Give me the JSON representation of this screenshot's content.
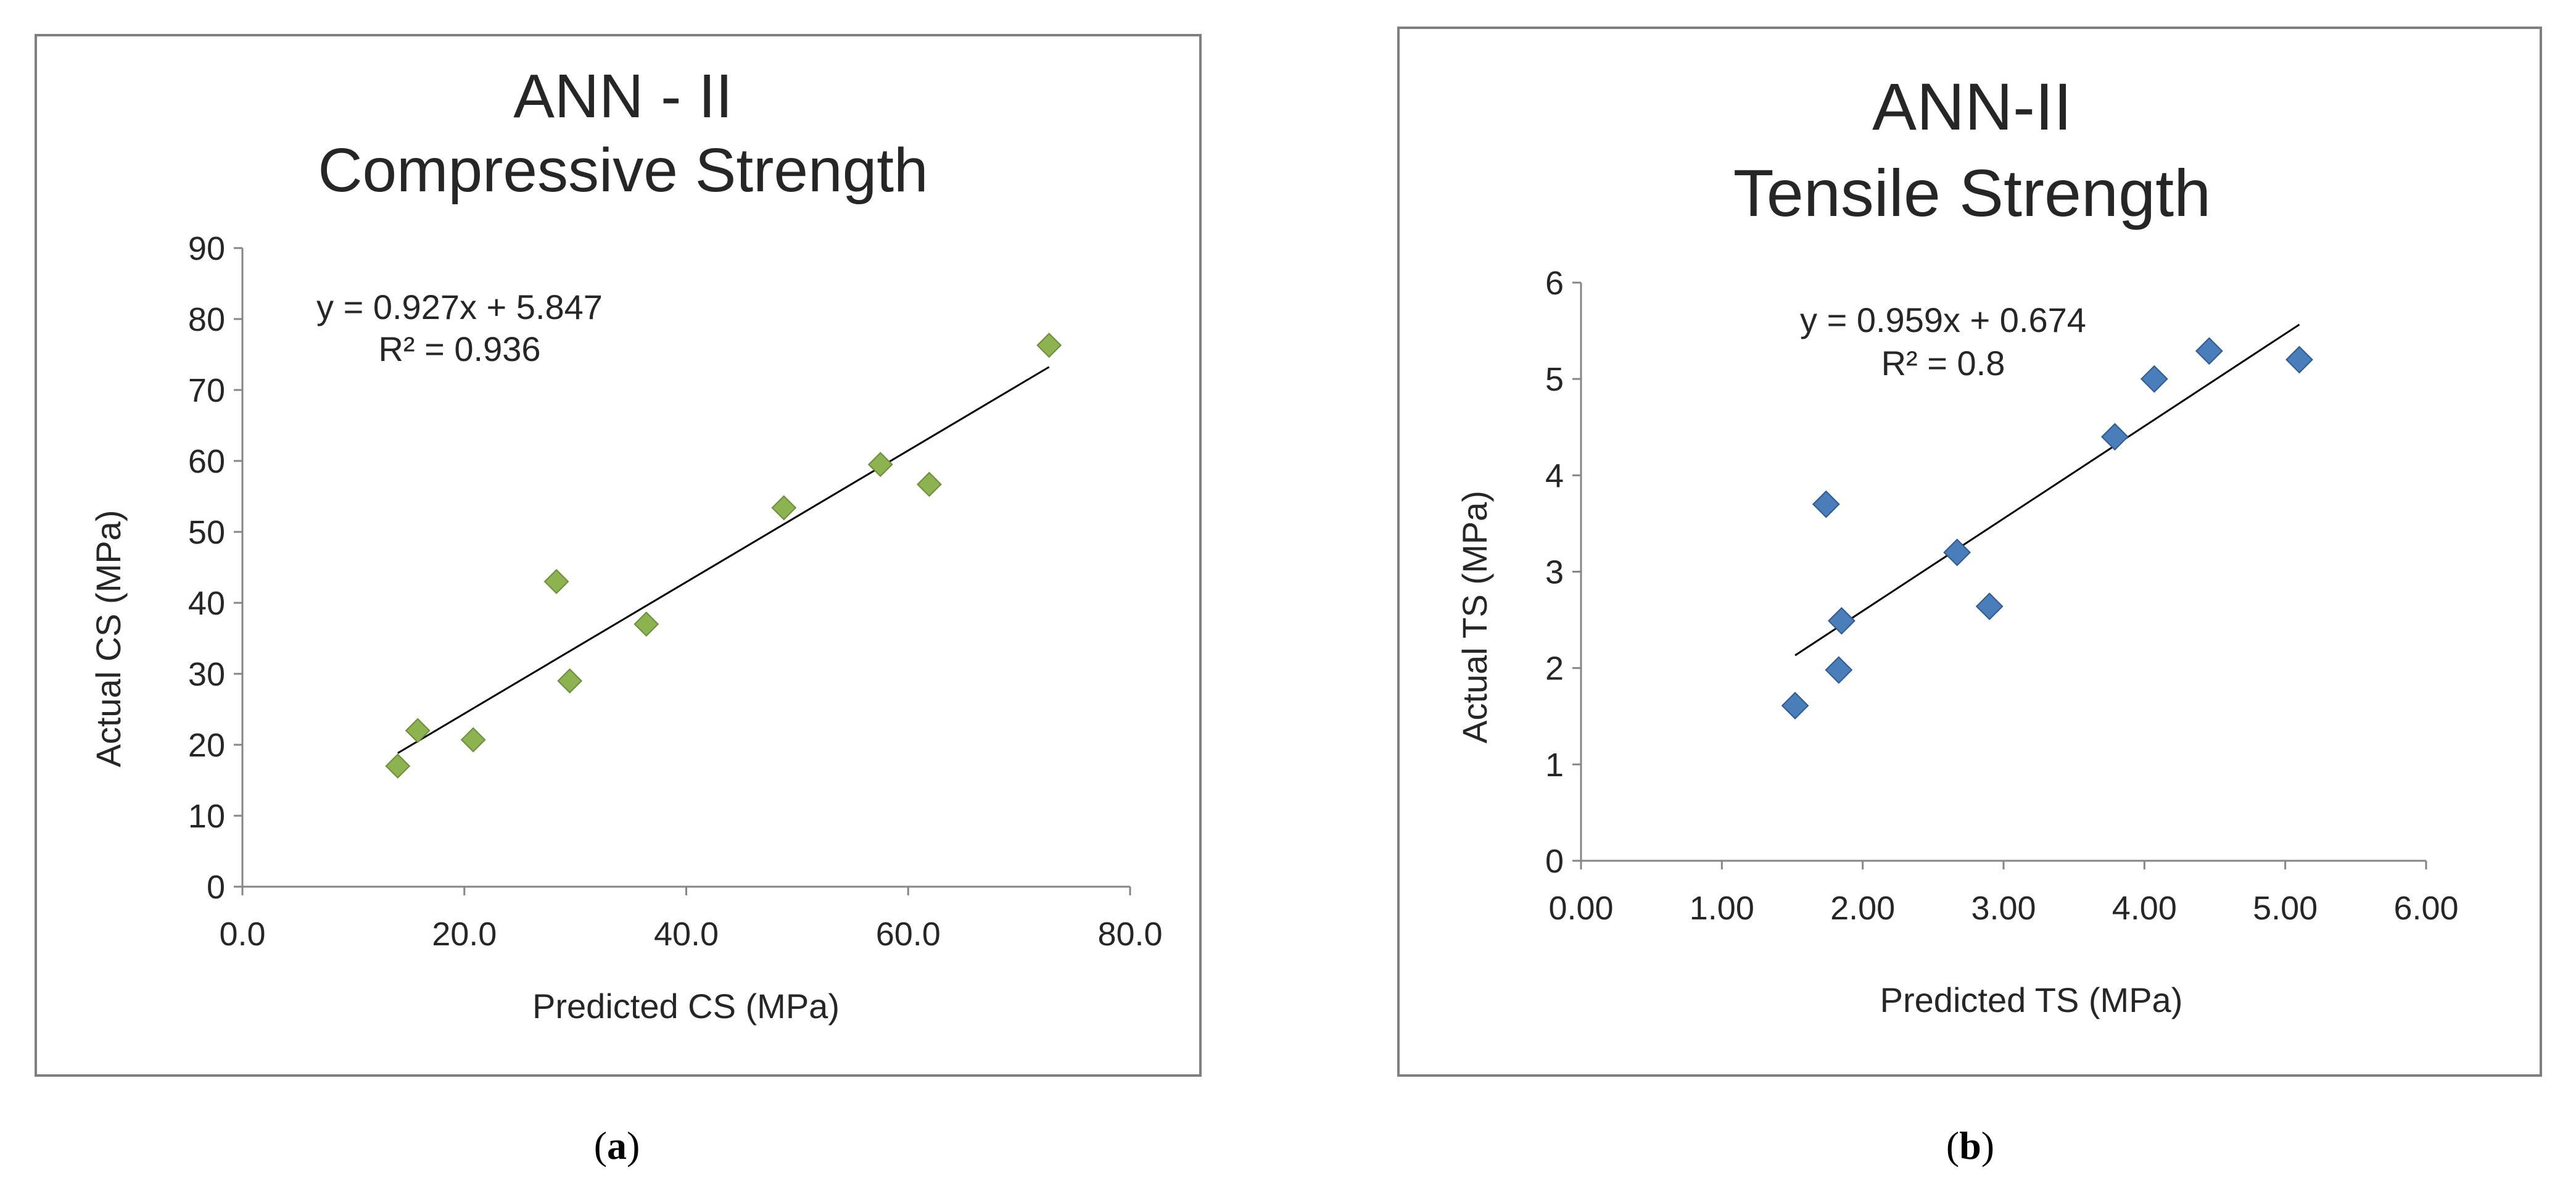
{
  "chart_data": [
    {
      "type": "scatter",
      "title_lines": [
        "ANN - II",
        "Compressive Strength"
      ],
      "xlabel": "Predicted CS (MPa)",
      "ylabel": "Actual CS (MPa)",
      "xlim": [
        0,
        80
      ],
      "ylim": [
        0,
        90
      ],
      "x_ticks": [
        0,
        20,
        40,
        60,
        80
      ],
      "x_tick_labels": [
        "0.0",
        "20.0",
        "40.0",
        "60.0",
        "80.0"
      ],
      "y_ticks": [
        0,
        10,
        20,
        30,
        40,
        50,
        60,
        70,
        80,
        90
      ],
      "y_tick_labels": [
        "0",
        "10",
        "20",
        "30",
        "40",
        "50",
        "60",
        "70",
        "80",
        "90"
      ],
      "grid": false,
      "marker_color": "#8DB350",
      "marker_edge": "#6B8E3A",
      "points": [
        {
          "x": 14.0,
          "y": 17.0
        },
        {
          "x": 15.8,
          "y": 22.0
        },
        {
          "x": 20.8,
          "y": 20.7
        },
        {
          "x": 28.3,
          "y": 43.0
        },
        {
          "x": 29.5,
          "y": 29.0
        },
        {
          "x": 36.4,
          "y": 37.0
        },
        {
          "x": 48.8,
          "y": 53.4
        },
        {
          "x": 57.5,
          "y": 59.5
        },
        {
          "x": 61.9,
          "y": 56.7
        },
        {
          "x": 72.7,
          "y": 76.3
        }
      ],
      "trendline": {
        "slope": 0.927,
        "intercept": 5.847,
        "x_range": [
          14.0,
          72.7
        ]
      },
      "equation_text": "y = 0.927x + 5.847",
      "r2_text": "R² = 0.936",
      "caption_letter": "a"
    },
    {
      "type": "scatter",
      "title_lines": [
        "ANN-II",
        "Tensile Strength"
      ],
      "xlabel": "Predicted TS (MPa)",
      "ylabel": "Actual TS (MPa)",
      "xlim": [
        0,
        6
      ],
      "ylim": [
        0,
        6
      ],
      "x_ticks": [
        0,
        1,
        2,
        3,
        4,
        5,
        6
      ],
      "x_tick_labels": [
        "0.00",
        "1.00",
        "2.00",
        "3.00",
        "4.00",
        "5.00",
        "6.00"
      ],
      "y_ticks": [
        0,
        1,
        2,
        3,
        4,
        5,
        6
      ],
      "y_tick_labels": [
        "0",
        "1",
        "2",
        "3",
        "4",
        "5",
        "6"
      ],
      "grid": false,
      "marker_color": "#4A7EBB",
      "marker_edge": "#2F5A8F",
      "points": [
        {
          "x": 1.52,
          "y": 1.61
        },
        {
          "x": 1.74,
          "y": 3.7
        },
        {
          "x": 1.83,
          "y": 1.98
        },
        {
          "x": 1.85,
          "y": 2.49
        },
        {
          "x": 2.67,
          "y": 3.2
        },
        {
          "x": 2.9,
          "y": 2.64
        },
        {
          "x": 3.79,
          "y": 4.4
        },
        {
          "x": 4.07,
          "y": 5.0
        },
        {
          "x": 4.46,
          "y": 5.29
        },
        {
          "x": 5.1,
          "y": 5.2
        }
      ],
      "trendline": {
        "slope": 0.959,
        "intercept": 0.674,
        "x_range": [
          1.52,
          5.1
        ]
      },
      "equation_text": "y = 0.959x + 0.674",
      "r2_text": "R² = 0.8",
      "caption_letter": "b"
    }
  ]
}
